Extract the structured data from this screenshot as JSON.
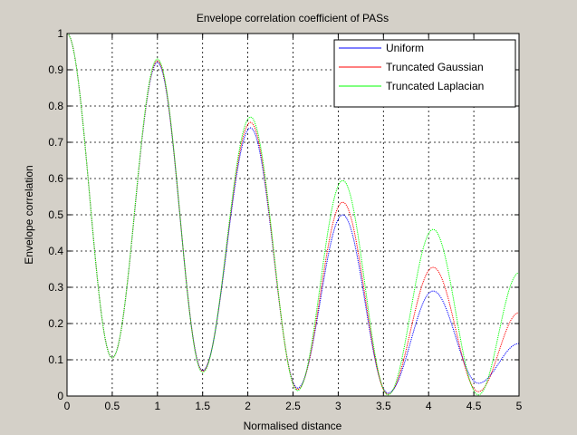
{
  "figure": {
    "background": "#d4d0c8",
    "axes_background": "#ffffff"
  },
  "chart_data": {
    "type": "line",
    "title": "Envelope correlation coefficient of PASs",
    "xlabel": "Normalised distance",
    "ylabel": "Envelope correlation",
    "xlim": [
      0,
      5
    ],
    "ylim": [
      0,
      1
    ],
    "xticks": [
      "0",
      "0.5",
      "1",
      "1.5",
      "2",
      "2.5",
      "3",
      "3.5",
      "4",
      "4.5",
      "5"
    ],
    "yticks": [
      "0",
      "0.1",
      "0.2",
      "0.3",
      "0.4",
      "0.5",
      "0.6",
      "0.7",
      "0.8",
      "0.9",
      "1"
    ],
    "grid": true,
    "legend_position": "top-right",
    "series": [
      {
        "name": "Uniform",
        "color": "#0000ff",
        "x": [
          0,
          0.5,
          1.0,
          1.5,
          2.03,
          2.55,
          3.05,
          3.55,
          4.05,
          4.55,
          5.0
        ],
        "y": [
          1.0,
          0.105,
          0.92,
          0.07,
          0.74,
          0.022,
          0.5,
          0.008,
          0.29,
          0.035,
          0.145
        ]
      },
      {
        "name": "Truncated Gaussian",
        "color": "#ff0000",
        "x": [
          0,
          0.5,
          1.0,
          1.5,
          2.03,
          2.55,
          3.05,
          3.55,
          4.05,
          4.55,
          5.0
        ],
        "y": [
          1.0,
          0.105,
          0.925,
          0.068,
          0.755,
          0.018,
          0.535,
          0.005,
          0.355,
          0.012,
          0.23
        ]
      },
      {
        "name": "Truncated Laplacian",
        "color": "#00ff00",
        "x": [
          0,
          0.5,
          1.0,
          1.5,
          2.03,
          2.55,
          3.05,
          3.55,
          4.05,
          4.55,
          5.0
        ],
        "y": [
          1.0,
          0.105,
          0.93,
          0.065,
          0.77,
          0.015,
          0.595,
          0.003,
          0.46,
          0.003,
          0.34
        ]
      }
    ]
  }
}
